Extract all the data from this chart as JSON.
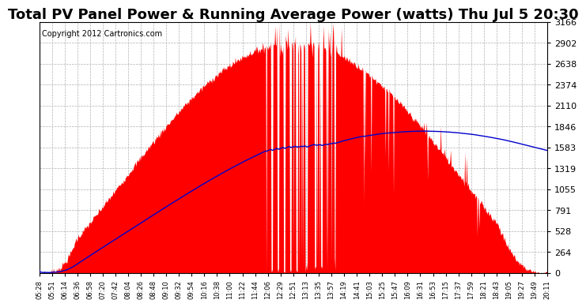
{
  "title": "Total PV Panel Power & Running Average Power (watts) Thu Jul 5 20:30",
  "copyright": "Copyright 2012 Cartronics.com",
  "y_max": 3165.5,
  "y_min": 0.0,
  "y_ticks": [
    0.0,
    263.8,
    527.6,
    791.4,
    1055.2,
    1318.9,
    1582.7,
    1846.5,
    2110.3,
    2374.1,
    2637.9,
    2901.7,
    3165.5
  ],
  "bg_color": "#ffffff",
  "plot_bg_color": "#ffffff",
  "grid_color": "#b0b0b0",
  "fill_color": "#ff0000",
  "line_color": "#0000cc",
  "title_fontsize": 13,
  "copyright_fontsize": 7,
  "x_tick_fontsize": 6,
  "y_tick_fontsize": 8,
  "x_label_rotation": 90,
  "x_labels": [
    "05:28",
    "05:51",
    "06:14",
    "06:36",
    "06:58",
    "07:20",
    "07:42",
    "08:04",
    "08:26",
    "08:48",
    "09:10",
    "09:32",
    "09:54",
    "10:16",
    "10:38",
    "11:00",
    "11:22",
    "11:44",
    "12:06",
    "12:29",
    "12:51",
    "13:13",
    "13:35",
    "13:57",
    "14:19",
    "14:41",
    "15:03",
    "15:25",
    "15:47",
    "16:09",
    "16:31",
    "16:53",
    "17:15",
    "17:37",
    "17:59",
    "18:21",
    "18:43",
    "19:05",
    "19:27",
    "19:49",
    "20:11"
  ]
}
